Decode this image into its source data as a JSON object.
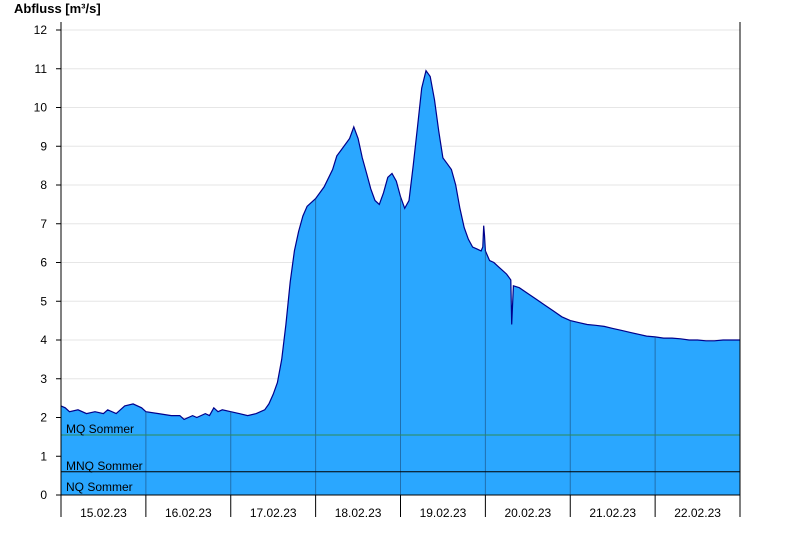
{
  "chart_data": {
    "type": "area",
    "ylabel": "Abfluss [m³/s]",
    "ylim": [
      0,
      12
    ],
    "yticks": [
      0,
      1,
      2,
      3,
      4,
      5,
      6,
      7,
      8,
      9,
      10,
      11,
      12
    ],
    "xlim": [
      0,
      8
    ],
    "day_labels": [
      "15.02.23",
      "16.02.23",
      "17.02.23",
      "18.02.23",
      "19.02.23",
      "20.02.23",
      "21.02.23",
      "22.02.23"
    ],
    "grid": "horizontal",
    "colors": {
      "fill": "#2aa7ff",
      "line": "#00008b",
      "mq": "#2e8b57",
      "ref": "#000000"
    },
    "reference_lines": [
      {
        "name": "MQ Sommer",
        "value": 1.55
      },
      {
        "name": "MNQ Sommer",
        "value": 0.6
      },
      {
        "name": "NQ Sommer",
        "value": 0.05
      }
    ],
    "series": [
      {
        "points": [
          [
            0.0,
            2.3
          ],
          [
            0.05,
            2.25
          ],
          [
            0.1,
            2.15
          ],
          [
            0.2,
            2.2
          ],
          [
            0.3,
            2.1
          ],
          [
            0.4,
            2.15
          ],
          [
            0.5,
            2.1
          ],
          [
            0.55,
            2.2
          ],
          [
            0.65,
            2.1
          ],
          [
            0.75,
            2.3
          ],
          [
            0.85,
            2.35
          ],
          [
            0.95,
            2.25
          ],
          [
            1.0,
            2.15
          ],
          [
            1.15,
            2.1
          ],
          [
            1.3,
            2.05
          ],
          [
            1.4,
            2.05
          ],
          [
            1.45,
            1.95
          ],
          [
            1.55,
            2.05
          ],
          [
            1.6,
            2.0
          ],
          [
            1.7,
            2.1
          ],
          [
            1.75,
            2.05
          ],
          [
            1.8,
            2.25
          ],
          [
            1.85,
            2.15
          ],
          [
            1.9,
            2.2
          ],
          [
            2.0,
            2.15
          ],
          [
            2.1,
            2.1
          ],
          [
            2.2,
            2.05
          ],
          [
            2.3,
            2.1
          ],
          [
            2.4,
            2.2
          ],
          [
            2.45,
            2.35
          ],
          [
            2.5,
            2.6
          ],
          [
            2.55,
            2.9
          ],
          [
            2.6,
            3.5
          ],
          [
            2.65,
            4.4
          ],
          [
            2.7,
            5.5
          ],
          [
            2.75,
            6.3
          ],
          [
            2.8,
            6.8
          ],
          [
            2.85,
            7.2
          ],
          [
            2.9,
            7.45
          ],
          [
            3.0,
            7.65
          ],
          [
            3.1,
            7.95
          ],
          [
            3.2,
            8.4
          ],
          [
            3.25,
            8.75
          ],
          [
            3.3,
            8.9
          ],
          [
            3.4,
            9.2
          ],
          [
            3.45,
            9.5
          ],
          [
            3.5,
            9.2
          ],
          [
            3.55,
            8.7
          ],
          [
            3.6,
            8.3
          ],
          [
            3.65,
            7.9
          ],
          [
            3.7,
            7.6
          ],
          [
            3.75,
            7.5
          ],
          [
            3.8,
            7.8
          ],
          [
            3.85,
            8.2
          ],
          [
            3.9,
            8.3
          ],
          [
            3.95,
            8.1
          ],
          [
            4.0,
            7.7
          ],
          [
            4.05,
            7.4
          ],
          [
            4.1,
            7.6
          ],
          [
            4.15,
            8.5
          ],
          [
            4.2,
            9.5
          ],
          [
            4.25,
            10.5
          ],
          [
            4.3,
            10.95
          ],
          [
            4.35,
            10.8
          ],
          [
            4.4,
            10.2
          ],
          [
            4.45,
            9.4
          ],
          [
            4.5,
            8.7
          ],
          [
            4.55,
            8.55
          ],
          [
            4.6,
            8.4
          ],
          [
            4.65,
            8.0
          ],
          [
            4.7,
            7.4
          ],
          [
            4.75,
            6.9
          ],
          [
            4.8,
            6.6
          ],
          [
            4.85,
            6.4
          ],
          [
            4.9,
            6.35
          ],
          [
            4.95,
            6.3
          ],
          [
            4.97,
            6.4
          ],
          [
            4.98,
            6.95
          ],
          [
            4.99,
            6.7
          ],
          [
            5.0,
            6.3
          ],
          [
            5.05,
            6.05
          ],
          [
            5.1,
            6.0
          ],
          [
            5.15,
            5.9
          ],
          [
            5.2,
            5.8
          ],
          [
            5.25,
            5.7
          ],
          [
            5.3,
            5.55
          ],
          [
            5.31,
            4.4
          ],
          [
            5.33,
            5.4
          ],
          [
            5.4,
            5.35
          ],
          [
            5.5,
            5.2
          ],
          [
            5.6,
            5.05
          ],
          [
            5.7,
            4.9
          ],
          [
            5.8,
            4.75
          ],
          [
            5.9,
            4.6
          ],
          [
            6.0,
            4.5
          ],
          [
            6.1,
            4.45
          ],
          [
            6.2,
            4.4
          ],
          [
            6.3,
            4.38
          ],
          [
            6.4,
            4.35
          ],
          [
            6.5,
            4.3
          ],
          [
            6.6,
            4.25
          ],
          [
            6.7,
            4.2
          ],
          [
            6.8,
            4.15
          ],
          [
            6.9,
            4.1
          ],
          [
            7.0,
            4.08
          ],
          [
            7.1,
            4.05
          ],
          [
            7.2,
            4.05
          ],
          [
            7.3,
            4.03
          ],
          [
            7.4,
            4.0
          ],
          [
            7.5,
            4.0
          ],
          [
            7.6,
            3.98
          ],
          [
            7.7,
            3.98
          ],
          [
            7.8,
            4.0
          ],
          [
            7.9,
            4.0
          ],
          [
            8.0,
            4.0
          ]
        ]
      }
    ]
  }
}
